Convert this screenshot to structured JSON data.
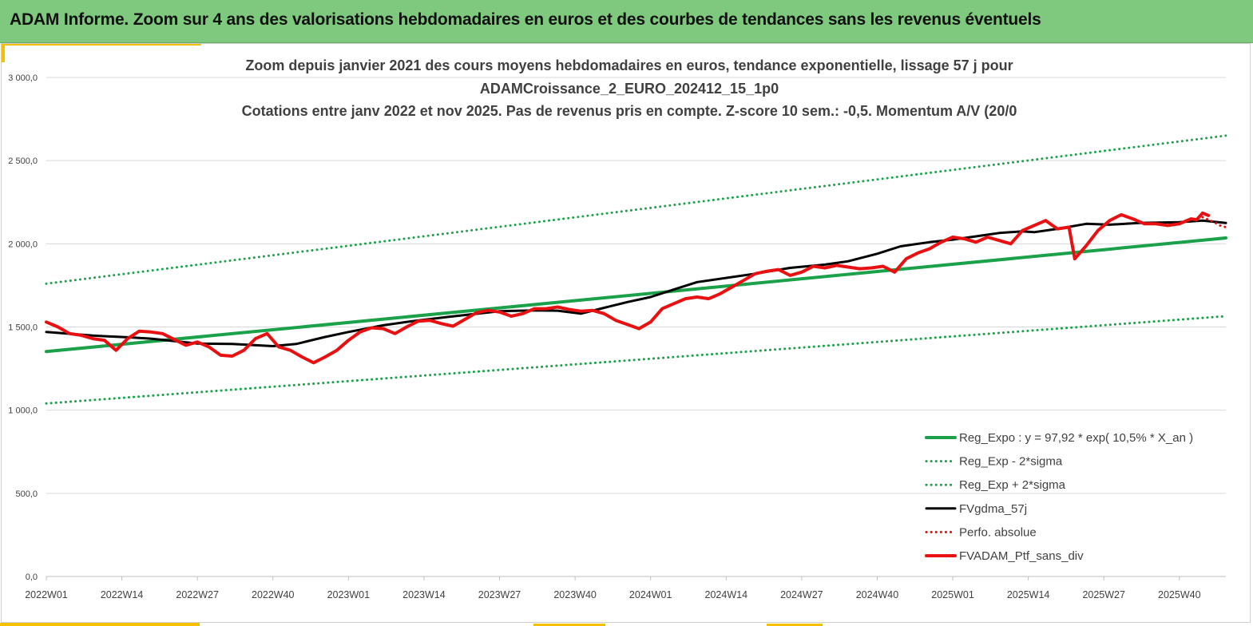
{
  "header": {
    "title": "ADAM Informe. Zoom sur 4 ans des valorisations hebdomadaires en euros et des courbes de tendances sans les revenus éventuels"
  },
  "colors": {
    "header_bg": "#7fc97f",
    "accent": "#f5c000",
    "reg_expo": "#1aa14a",
    "sigma": "#1aa14a",
    "fvgdma": "#000000",
    "perfo": "#e01010",
    "fvadam": "#e81010",
    "grid": "#d9d9d9"
  },
  "chart_data": {
    "type": "line",
    "title_lines": [
      "Zoom depuis janvier 2021 des cours moyens hebdomadaires  en euros, tendance exponentielle, lissage 57 j pour",
      "ADAMCroissance_2_EURO_202412_15_1p0",
      "Cotations  entre janv 2022 et nov 2025. Pas de revenus pris en compte. Z-score 10 sem.: -0,5. Momentum A/V (20/0"
    ],
    "ylim": [
      0,
      3000
    ],
    "y_ticks": [
      {
        "value": 0,
        "label": "0,0"
      },
      {
        "value": 500,
        "label": "500,0"
      },
      {
        "value": 1000,
        "label": "1 000,0"
      },
      {
        "value": 1500,
        "label": "1 500,0"
      },
      {
        "value": 2000,
        "label": "2 000,0"
      },
      {
        "value": 2500,
        "label": "2 500,0"
      },
      {
        "value": 3000,
        "label": "3 000,0"
      }
    ],
    "x_range": [
      0,
      203
    ],
    "x_ticks": [
      {
        "week": 0,
        "label": "2022W01"
      },
      {
        "week": 13,
        "label": "2022W14"
      },
      {
        "week": 26,
        "label": "2022W27"
      },
      {
        "week": 39,
        "label": "2022W40"
      },
      {
        "week": 52,
        "label": "2023W01"
      },
      {
        "week": 65,
        "label": "2023W14"
      },
      {
        "week": 78,
        "label": "2023W27"
      },
      {
        "week": 91,
        "label": "2023W40"
      },
      {
        "week": 104,
        "label": "2024W01"
      },
      {
        "week": 117,
        "label": "2024W14"
      },
      {
        "week": 130,
        "label": "2024W27"
      },
      {
        "week": 143,
        "label": "2024W40"
      },
      {
        "week": 156,
        "label": "2025W01"
      },
      {
        "week": 169,
        "label": "2025W14"
      },
      {
        "week": 182,
        "label": "2025W27"
      },
      {
        "week": 195,
        "label": "2025W40"
      }
    ],
    "legend_position": "bottom-right",
    "series": [
      {
        "key": "reg_expo",
        "name": "Reg_Expo : y = 97,92 * exp( 10,5% *  X_an )",
        "style": "solid-thick",
        "color": "#1aa14a",
        "points": [
          [
            0,
            1352
          ],
          [
            203,
            2035
          ]
        ]
      },
      {
        "key": "reg_minus",
        "name": "Reg_Exp - 2*sigma",
        "style": "dotted",
        "color": "#1aa14a",
        "points": [
          [
            0,
            1040
          ],
          [
            203,
            1565
          ]
        ]
      },
      {
        "key": "reg_plus",
        "name": "Reg_Exp + 2*sigma",
        "style": "dotted",
        "color": "#1aa14a",
        "points": [
          [
            0,
            1760
          ],
          [
            203,
            2650
          ]
        ]
      },
      {
        "key": "fvgdma",
        "name": "FVgdma_57j",
        "style": "solid",
        "color": "#000000",
        "points": [
          [
            0,
            1470
          ],
          [
            8,
            1448
          ],
          [
            14,
            1438
          ],
          [
            18,
            1430
          ],
          [
            26,
            1400
          ],
          [
            32,
            1398
          ],
          [
            39,
            1385
          ],
          [
            43,
            1398
          ],
          [
            48,
            1440
          ],
          [
            52,
            1470
          ],
          [
            58,
            1510
          ],
          [
            63,
            1535
          ],
          [
            69,
            1560
          ],
          [
            78,
            1595
          ],
          [
            84,
            1600
          ],
          [
            88,
            1598
          ],
          [
            92,
            1580
          ],
          [
            96,
            1615
          ],
          [
            100,
            1650
          ],
          [
            104,
            1680
          ],
          [
            108,
            1725
          ],
          [
            112,
            1770
          ],
          [
            118,
            1800
          ],
          [
            122,
            1820
          ],
          [
            128,
            1855
          ],
          [
            134,
            1875
          ],
          [
            138,
            1895
          ],
          [
            143,
            1940
          ],
          [
            147,
            1985
          ],
          [
            152,
            2010
          ],
          [
            156,
            2025
          ],
          [
            160,
            2045
          ],
          [
            164,
            2065
          ],
          [
            168,
            2075
          ],
          [
            170,
            2070
          ],
          [
            174,
            2090
          ],
          [
            179,
            2120
          ],
          [
            183,
            2115
          ],
          [
            188,
            2125
          ],
          [
            195,
            2130
          ],
          [
            199,
            2140
          ],
          [
            203,
            2125
          ]
        ]
      },
      {
        "key": "perfo",
        "name": "Perfo. absolue",
        "style": "dotted",
        "color": "#e01010",
        "points": [
          [
            199,
            2160
          ],
          [
            201,
            2130
          ],
          [
            202,
            2110
          ],
          [
            203,
            2100
          ]
        ]
      },
      {
        "key": "fvadam",
        "name": "FVADAM_Ptf_sans_div",
        "style": "solid-thick",
        "color": "#e81010",
        "points": [
          [
            0,
            1530
          ],
          [
            2,
            1500
          ],
          [
            4,
            1460
          ],
          [
            6,
            1450
          ],
          [
            8,
            1430
          ],
          [
            10,
            1420
          ],
          [
            12,
            1360
          ],
          [
            14,
            1430
          ],
          [
            16,
            1475
          ],
          [
            18,
            1470
          ],
          [
            20,
            1460
          ],
          [
            22,
            1425
          ],
          [
            24,
            1390
          ],
          [
            26,
            1410
          ],
          [
            28,
            1380
          ],
          [
            30,
            1330
          ],
          [
            32,
            1325
          ],
          [
            34,
            1360
          ],
          [
            36,
            1430
          ],
          [
            38,
            1460
          ],
          [
            40,
            1380
          ],
          [
            42,
            1360
          ],
          [
            44,
            1320
          ],
          [
            46,
            1285
          ],
          [
            48,
            1320
          ],
          [
            50,
            1360
          ],
          [
            52,
            1420
          ],
          [
            54,
            1470
          ],
          [
            56,
            1495
          ],
          [
            58,
            1490
          ],
          [
            60,
            1460
          ],
          [
            62,
            1500
          ],
          [
            64,
            1535
          ],
          [
            66,
            1540
          ],
          [
            68,
            1520
          ],
          [
            70,
            1505
          ],
          [
            72,
            1545
          ],
          [
            74,
            1585
          ],
          [
            76,
            1600
          ],
          [
            78,
            1590
          ],
          [
            80,
            1565
          ],
          [
            82,
            1580
          ],
          [
            84,
            1610
          ],
          [
            86,
            1610
          ],
          [
            88,
            1620
          ],
          [
            90,
            1605
          ],
          [
            92,
            1595
          ],
          [
            94,
            1600
          ],
          [
            96,
            1580
          ],
          [
            98,
            1540
          ],
          [
            100,
            1515
          ],
          [
            102,
            1490
          ],
          [
            104,
            1530
          ],
          [
            106,
            1610
          ],
          [
            108,
            1640
          ],
          [
            110,
            1670
          ],
          [
            112,
            1680
          ],
          [
            114,
            1670
          ],
          [
            116,
            1700
          ],
          [
            118,
            1740
          ],
          [
            120,
            1780
          ],
          [
            122,
            1820
          ],
          [
            124,
            1835
          ],
          [
            126,
            1845
          ],
          [
            128,
            1810
          ],
          [
            130,
            1830
          ],
          [
            132,
            1865
          ],
          [
            134,
            1855
          ],
          [
            136,
            1870
          ],
          [
            138,
            1860
          ],
          [
            140,
            1850
          ],
          [
            142,
            1855
          ],
          [
            144,
            1865
          ],
          [
            146,
            1830
          ],
          [
            148,
            1910
          ],
          [
            150,
            1945
          ],
          [
            152,
            1970
          ],
          [
            154,
            2010
          ],
          [
            156,
            2040
          ],
          [
            158,
            2030
          ],
          [
            160,
            2010
          ],
          [
            162,
            2040
          ],
          [
            164,
            2020
          ],
          [
            166,
            2000
          ],
          [
            168,
            2080
          ],
          [
            170,
            2110
          ],
          [
            172,
            2140
          ],
          [
            174,
            2090
          ],
          [
            176,
            2100
          ],
          [
            177,
            1910
          ],
          [
            179,
            1990
          ],
          [
            181,
            2080
          ],
          [
            183,
            2140
          ],
          [
            185,
            2175
          ],
          [
            187,
            2150
          ],
          [
            189,
            2120
          ],
          [
            191,
            2120
          ],
          [
            193,
            2110
          ],
          [
            195,
            2120
          ],
          [
            197,
            2150
          ],
          [
            198,
            2145
          ],
          [
            199,
            2185
          ],
          [
            200,
            2170
          ]
        ]
      }
    ]
  }
}
